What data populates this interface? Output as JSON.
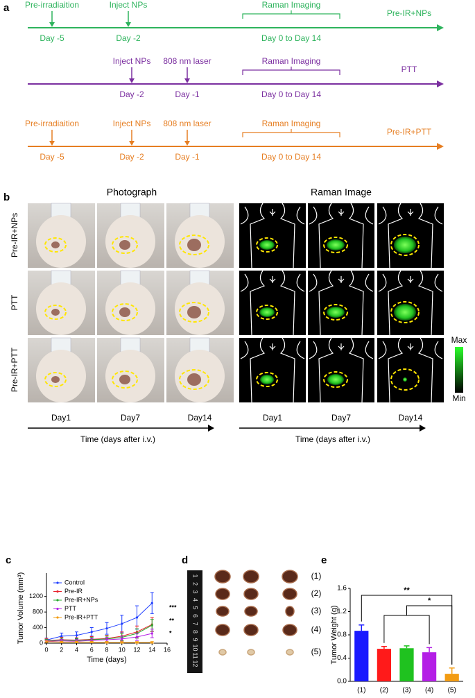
{
  "panel_labels": [
    "a",
    "b",
    "c",
    "d",
    "e"
  ],
  "timeline": {
    "rows": [
      {
        "name": "Pre-IR+NPs",
        "color": "#2db35c",
        "events": [
          {
            "above": "Pre-irradiaition",
            "below": "Day -5"
          },
          {
            "above": "Inject NPs",
            "below": "Day -2"
          }
        ],
        "imaging": {
          "label": "Raman Imaging",
          "days": "Day 0 to Day 14"
        }
      },
      {
        "name": "PTT",
        "color": "#7b2fa0",
        "events": [
          {
            "above": "Inject NPs",
            "below": "Day -2"
          },
          {
            "above": "808 nm laser",
            "below": "Day -1"
          }
        ],
        "imaging": {
          "label": "Raman Imaging",
          "days": "Day 0 to Day 14"
        }
      },
      {
        "name": "Pre-IR+PTT",
        "color": "#e67e22",
        "events": [
          {
            "above": "Pre-irradiaition",
            "below": "Day -5"
          },
          {
            "above": "Inject NPs",
            "below": "Day -2"
          },
          {
            "above": "808 nm laser",
            "below": "Day -1"
          }
        ],
        "imaging": {
          "label": "Raman Imaging",
          "days": "Day 0 to Day 14"
        }
      }
    ]
  },
  "panel_b": {
    "columns": [
      "Photograph",
      "Raman Image"
    ],
    "rows": [
      "Pre-IR+NPs",
      "PTT",
      "Pre-IR+PTT"
    ],
    "days": [
      "Day1",
      "Day7",
      "Day14"
    ],
    "time_axis": "Time (days after i.v.)",
    "colorbar": [
      "Max",
      "Min"
    ]
  },
  "panel_d": {
    "ruler": [
      "1",
      "2",
      "3",
      "4",
      "5",
      "6",
      "7",
      "8",
      "9",
      "10",
      "11",
      "12"
    ],
    "groups": [
      "(1)",
      "(2)",
      "(3)",
      "(4)",
      "(5)"
    ]
  },
  "chart_data": [
    {
      "type": "line",
      "x_label": "Time (days)",
      "y_label": "Tumor Volume (mm³)",
      "x": [
        0,
        2,
        4,
        6,
        8,
        10,
        12,
        14
      ],
      "xlim": [
        0,
        16
      ],
      "xticks": [
        0,
        2,
        4,
        6,
        8,
        10,
        12,
        14,
        16
      ],
      "ylim": [
        0,
        1800
      ],
      "yticks": [
        0,
        400,
        800,
        1200
      ],
      "legend": "upper left",
      "series": [
        {
          "name": "Control",
          "color": "#1f3fff",
          "values": [
            80,
            180,
            200,
            290,
            380,
            500,
            660,
            1030
          ],
          "errors": [
            50,
            80,
            90,
            110,
            150,
            220,
            300,
            270
          ]
        },
        {
          "name": "Pre-IR",
          "color": "#e8202a",
          "values": [
            70,
            90,
            80,
            100,
            120,
            180,
            290,
            480
          ],
          "errors": [
            50,
            60,
            60,
            70,
            80,
            110,
            150,
            180
          ]
        },
        {
          "name": "Pre-IR+NPs",
          "color": "#26a82e",
          "values": [
            60,
            80,
            70,
            90,
            110,
            150,
            250,
            460
          ],
          "errors": [
            40,
            50,
            50,
            60,
            70,
            90,
            120,
            150
          ]
        },
        {
          "name": "PTT",
          "color": "#b421e6",
          "values": [
            50,
            60,
            50,
            70,
            90,
            110,
            160,
            250
          ],
          "errors": [
            30,
            40,
            40,
            50,
            60,
            70,
            90,
            110
          ]
        },
        {
          "name": "Pre-IR+PTT",
          "color": "#f39c12",
          "values": [
            40,
            30,
            30,
            30,
            20,
            20,
            20,
            20
          ],
          "errors": [
            20,
            20,
            20,
            20,
            20,
            20,
            20,
            20
          ]
        }
      ],
      "annotations": [
        "***",
        "**",
        "*"
      ]
    },
    {
      "type": "bar",
      "y_label": "Tumor Weight (g)",
      "categories": [
        "(1)",
        "(2)",
        "(3)",
        "(4)",
        "(5)"
      ],
      "values": [
        0.87,
        0.56,
        0.57,
        0.5,
        0.13
      ],
      "errors": [
        0.1,
        0.04,
        0.04,
        0.08,
        0.1
      ],
      "colors": [
        "#1a1aff",
        "#ff1a1a",
        "#1fc21f",
        "#b41fe6",
        "#f39c12"
      ],
      "ylim": [
        0,
        1.6
      ],
      "yticks": [
        {
          "value": 0,
          "label": "0.0"
        },
        0.4,
        0.8,
        1.2,
        1.6
      ],
      "annotations": [
        "**",
        "*"
      ]
    }
  ]
}
